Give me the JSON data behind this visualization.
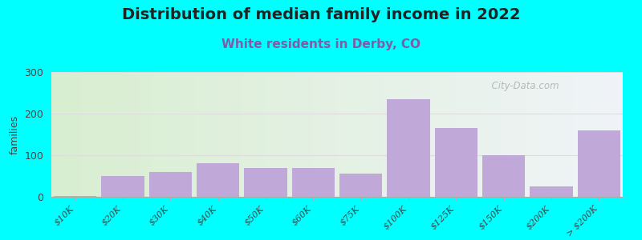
{
  "title": "Distribution of median family income in 2022",
  "subtitle": "White residents in Derby, CO",
  "ylabel": "families",
  "background_outer": "#00FFFF",
  "bar_color": "#C0A8D8",
  "categories": [
    "$10K",
    "$20K",
    "$30K",
    "$40K",
    "$50K",
    "$60K",
    "$75K",
    "$100K",
    "$125K",
    "$150K",
    "$200K",
    "> $200K"
  ],
  "values": [
    2,
    50,
    60,
    80,
    70,
    70,
    55,
    235,
    165,
    100,
    25,
    160
  ],
  "ylim": [
    0,
    300
  ],
  "yticks": [
    0,
    100,
    200,
    300
  ],
  "title_fontsize": 14,
  "subtitle_fontsize": 11,
  "subtitle_color": "#7B5EA7",
  "watermark": "  City-Data.com",
  "grad_left": "#D8EED0",
  "grad_right": "#F0F4F8",
  "grid_color": "#DDDDDD"
}
